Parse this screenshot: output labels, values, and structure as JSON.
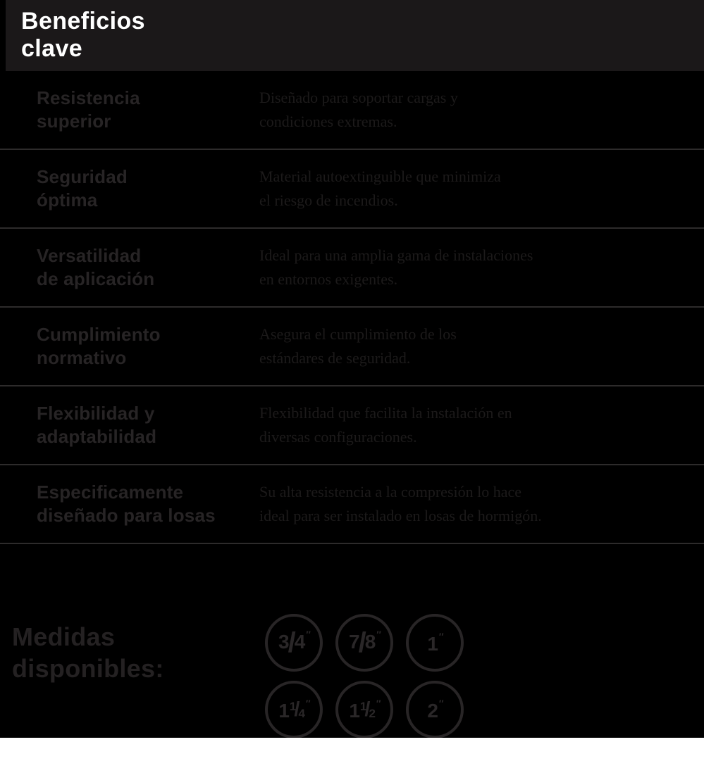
{
  "header": {
    "title_line1": "Beneficios",
    "title_line2": "clave"
  },
  "benefits": [
    {
      "title_line1": "Resistencia",
      "title_line2": "superior",
      "desc_line1": "Diseñado para soportar cargas y",
      "desc_line2": "condiciones extremas."
    },
    {
      "title_line1": "Seguridad",
      "title_line2": "óptima",
      "desc_line1": "Material autoextinguible que minimiza",
      "desc_line2": "el riesgo de incendios."
    },
    {
      "title_line1": "Versatilidad",
      "title_line2": "de aplicación",
      "desc_line1": "Ideal para una amplia gama de instalaciones",
      "desc_line2": "en entornos exigentes."
    },
    {
      "title_line1": "Cumplimiento",
      "title_line2": "normativo",
      "desc_line1": "Asegura el cumplimiento de los",
      "desc_line2": "estándares de seguridad."
    },
    {
      "title_line1": "Flexibilidad y",
      "title_line2": "adaptabilidad",
      "desc_line1": "Flexibilidad que facilita la instalación en",
      "desc_line2": "diversas configuraciones."
    },
    {
      "title_line1": "Especificamente",
      "title_line2": "diseñado para losas",
      "desc_line1": "Su alta resistencia a la compresión lo hace",
      "desc_line2": "ideal para ser instalado en losas de hormigón."
    }
  ],
  "sizes_section": {
    "label_line1": "Medidas",
    "label_line2": "disponibles:",
    "sizes": [
      {
        "label": "3/4″",
        "whole": "",
        "num": "3",
        "slash": "/",
        "den": "4",
        "unit": "″",
        "variant": "big"
      },
      {
        "label": "7/8″",
        "whole": "",
        "num": "7",
        "slash": "/",
        "den": "8",
        "unit": "″",
        "variant": "big"
      },
      {
        "label": "1″",
        "whole": "1",
        "num": "",
        "slash": "",
        "den": "",
        "unit": "″",
        "variant": "plain"
      },
      {
        "label": "1 1/4″",
        "whole": "1",
        "num": "1",
        "slash": "/",
        "den": "4",
        "unit": "″",
        "variant": "small"
      },
      {
        "label": "1 1/2″",
        "whole": "1",
        "num": "1",
        "slash": "/",
        "den": "2",
        "unit": "″",
        "variant": "small"
      },
      {
        "label": "2″",
        "whole": "2",
        "num": "",
        "slash": "",
        "den": "",
        "unit": "″",
        "variant": "plain"
      }
    ]
  },
  "colors": {
    "page_background": "#000000",
    "header_band": "#1b1819",
    "header_text": "#ffffff",
    "row_title_text": "#272425",
    "row_desc_text": "#1c1a1a",
    "divider": "#2d2b2b",
    "badge_outline": "#282526",
    "bottom_strip": "#ffffff"
  }
}
